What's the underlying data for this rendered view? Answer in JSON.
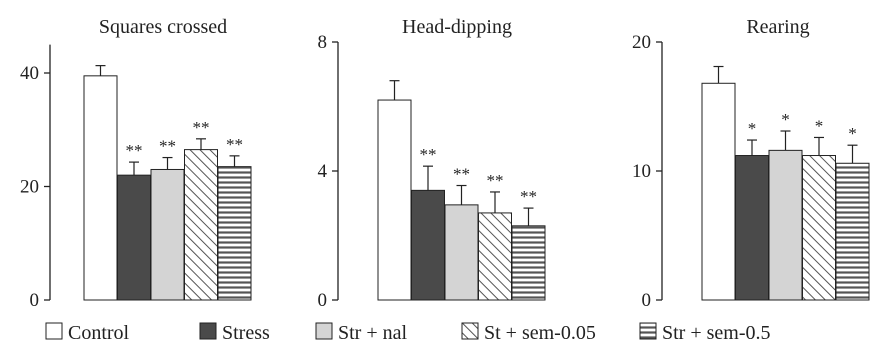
{
  "chart_data": [
    {
      "type": "bar",
      "title": "Squares crossed",
      "categories": [
        "Control",
        "Stress",
        "Str + nal",
        "St + sem-0.05",
        "Str + sem-0.5"
      ],
      "values": [
        39.5,
        22,
        23,
        26.5,
        23.5
      ],
      "errors": [
        1.8,
        2.3,
        2.1,
        1.9,
        1.9
      ],
      "significance": [
        "",
        "**",
        "**",
        "**",
        "**"
      ],
      "ylim": [
        0,
        45
      ],
      "yticks": [
        0,
        20,
        40
      ],
      "ytick_labels": [
        "0",
        "20",
        "40"
      ]
    },
    {
      "type": "bar",
      "title": "Head-dipping",
      "categories": [
        "Control",
        "Stress",
        "Str + nal",
        "St + sem-0.05",
        "Str + sem-0.5"
      ],
      "values": [
        6.2,
        3.4,
        2.95,
        2.7,
        2.3
      ],
      "errors": [
        0.6,
        0.75,
        0.6,
        0.65,
        0.55
      ],
      "significance": [
        "",
        "**",
        "**",
        "**",
        "**"
      ],
      "ylim": [
        0,
        8
      ],
      "yticks": [
        0,
        4,
        8
      ],
      "ytick_labels": [
        "0",
        "4",
        "8"
      ]
    },
    {
      "type": "bar",
      "title": "Rearing",
      "categories": [
        "Control",
        "Stress",
        "Str + nal",
        "St + sem-0.05",
        "Str + sem-0.5"
      ],
      "values": [
        16.8,
        11.2,
        11.6,
        11.2,
        10.6
      ],
      "errors": [
        1.3,
        1.2,
        1.5,
        1.4,
        1.4
      ],
      "significance": [
        "",
        "*",
        "*",
        "*",
        "*"
      ],
      "ylim": [
        0,
        20
      ],
      "yticks": [
        0,
        10,
        20
      ],
      "ytick_labels": [
        "0",
        "10",
        "20"
      ]
    }
  ],
  "legend": {
    "placement": "bottom",
    "items": [
      {
        "label": "Control",
        "style": "white"
      },
      {
        "label": "Stress",
        "style": "dark"
      },
      {
        "label": "Str + nal",
        "style": "light"
      },
      {
        "label": "St + sem-0.05",
        "style": "diagonal"
      },
      {
        "label": "Str + sem-0.5",
        "style": "horizontal"
      }
    ]
  },
  "colors": {
    "axis": "#222222",
    "bar_outline": "#222222",
    "white": "#ffffff",
    "dark": "#4a4a4a",
    "light": "#d4d4d4",
    "hatch": "#555555",
    "hatch_bg": "#ffffff"
  }
}
